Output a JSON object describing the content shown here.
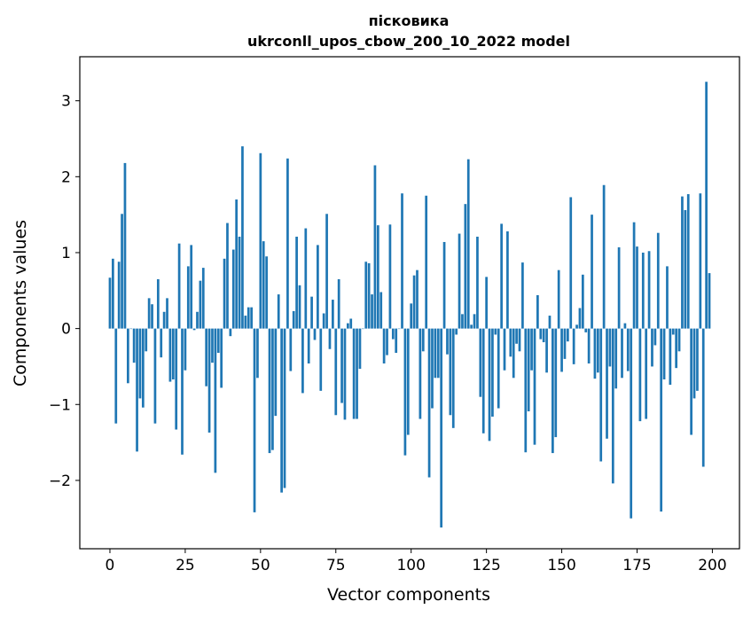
{
  "chart_data": {
    "type": "bar",
    "title_line1": "пісковика",
    "title_line2": "ukrconll_upos_cbow_200_10_2022 model",
    "xlabel": "Vector components",
    "ylabel": "Components values",
    "xlim": [
      -10,
      209
    ],
    "ylim": [
      -2.9,
      3.58
    ],
    "x_ticks": [
      0,
      25,
      50,
      75,
      100,
      125,
      150,
      175,
      200
    ],
    "y_ticks": [
      -2,
      -1,
      0,
      1,
      2,
      3
    ],
    "bar_color": "#1f77b4",
    "values": [
      0.67,
      0.92,
      -1.25,
      0.88,
      1.51,
      2.18,
      -0.72,
      0.0,
      -0.45,
      -1.62,
      -0.92,
      -1.04,
      -0.3,
      0.4,
      0.32,
      -1.25,
      0.65,
      -0.38,
      0.22,
      0.4,
      -0.7,
      -0.67,
      -1.33,
      1.12,
      -1.66,
      -0.55,
      0.82,
      1.1,
      -0.02,
      0.22,
      0.63,
      0.8,
      -0.76,
      -1.37,
      -0.45,
      -1.9,
      -0.32,
      -0.78,
      0.92,
      1.39,
      -0.1,
      1.04,
      1.7,
      1.21,
      2.4,
      0.17,
      0.28,
      0.28,
      -2.42,
      -0.65,
      2.31,
      1.15,
      0.95,
      -1.64,
      -1.6,
      -1.15,
      0.45,
      -2.16,
      -2.1,
      2.24,
      -0.56,
      0.23,
      1.21,
      0.57,
      -0.85,
      1.32,
      -0.46,
      0.42,
      -0.15,
      1.1,
      -0.82,
      0.2,
      1.51,
      -0.27,
      0.38,
      -1.14,
      0.65,
      -0.98,
      -1.2,
      0.07,
      0.13,
      -1.19,
      -1.19,
      -0.53,
      0.0,
      0.88,
      0.86,
      0.45,
      2.15,
      1.36,
      0.48,
      -0.46,
      -0.35,
      1.37,
      -0.14,
      -0.32,
      0.0,
      1.78,
      -1.67,
      -1.4,
      0.33,
      0.7,
      0.77,
      -1.19,
      -0.3,
      1.75,
      -1.96,
      -1.05,
      -0.65,
      -0.65,
      -2.62,
      1.14,
      -0.34,
      -1.14,
      -1.31,
      -0.08,
      1.25,
      0.19,
      1.64,
      2.23,
      0.05,
      0.19,
      1.21,
      -0.9,
      -1.38,
      0.68,
      -1.48,
      -1.16,
      -0.08,
      -1.05,
      1.38,
      -0.55,
      1.28,
      -0.37,
      -0.65,
      -0.2,
      -0.3,
      0.87,
      -1.63,
      -1.09,
      -0.55,
      -1.53,
      0.44,
      -0.14,
      -0.18,
      -0.58,
      0.17,
      -1.64,
      -1.43,
      0.77,
      -0.57,
      -0.4,
      -0.17,
      1.73,
      -0.47,
      0.05,
      0.27,
      0.71,
      -0.05,
      -0.46,
      1.5,
      -0.66,
      -0.58,
      -1.75,
      1.89,
      -1.45,
      -0.5,
      -2.04,
      -0.79,
      1.07,
      -0.65,
      0.07,
      -0.56,
      -2.5,
      1.4,
      1.08,
      -1.22,
      1.0,
      -1.19,
      1.02,
      -0.5,
      -0.22,
      1.26,
      -2.41,
      -0.67,
      0.82,
      -0.74,
      -0.08,
      -0.52,
      -0.3,
      1.74,
      1.56,
      1.77,
      -1.4,
      -0.92,
      -0.82,
      1.78,
      -1.82,
      3.25,
      0.73
    ]
  }
}
